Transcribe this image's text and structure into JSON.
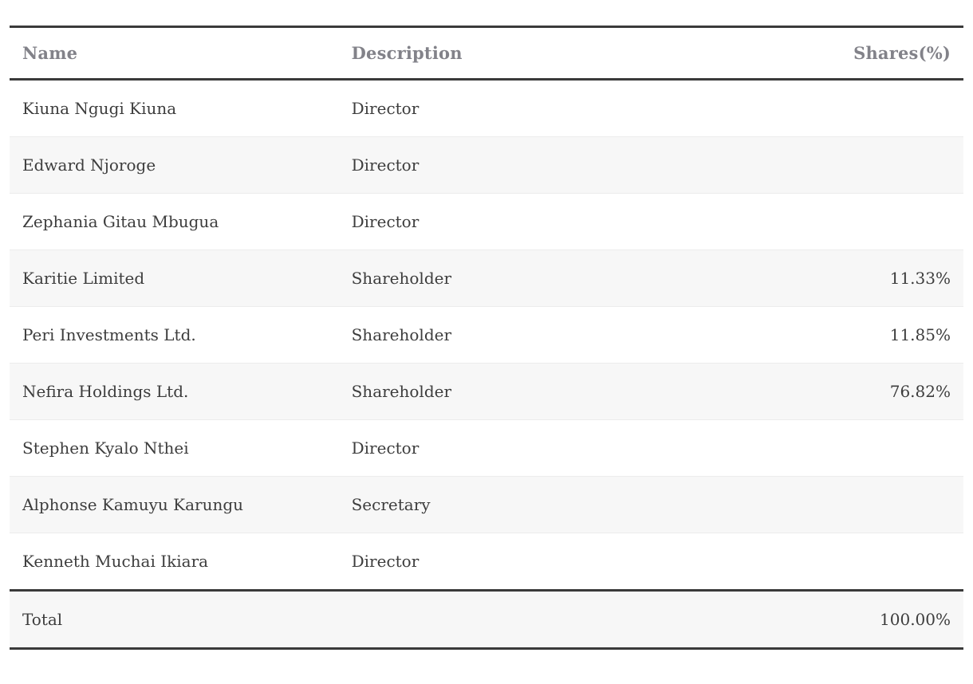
{
  "table": {
    "columns": [
      {
        "label": "Name",
        "align": "left"
      },
      {
        "label": "Description",
        "align": "left"
      },
      {
        "label": "Shares(%)",
        "align": "right"
      }
    ],
    "rows": [
      {
        "name": "Kiuna Ngugi Kiuna",
        "description": "Director",
        "shares": ""
      },
      {
        "name": "Edward Njoroge",
        "description": "Director",
        "shares": ""
      },
      {
        "name": "Zephania Gitau Mbugua",
        "description": "Director",
        "shares": ""
      },
      {
        "name": "Karitie Limited",
        "description": "Shareholder",
        "shares": "11.33%"
      },
      {
        "name": "Peri Investments Ltd.",
        "description": "Shareholder",
        "shares": "11.85%"
      },
      {
        "name": "Nefira Holdings Ltd.",
        "description": "Shareholder",
        "shares": "76.82%"
      },
      {
        "name": "Stephen Kyalo Nthei",
        "description": "Director",
        "shares": ""
      },
      {
        "name": "Alphonse Kamuyu Karungu",
        "description": "Secretary",
        "shares": ""
      },
      {
        "name": "Kenneth Muchai Ikiara",
        "description": "Director",
        "shares": ""
      }
    ],
    "total": {
      "label": "Total",
      "description": "",
      "shares": "100.00%"
    }
  },
  "colors": {
    "rule_dark": "#3a3a3a",
    "row_divider": "#ececec",
    "stripe_bg": "#f7f7f7",
    "header_text": "#828289",
    "body_text": "#3d3d3d",
    "page_bg": "#ffffff"
  }
}
